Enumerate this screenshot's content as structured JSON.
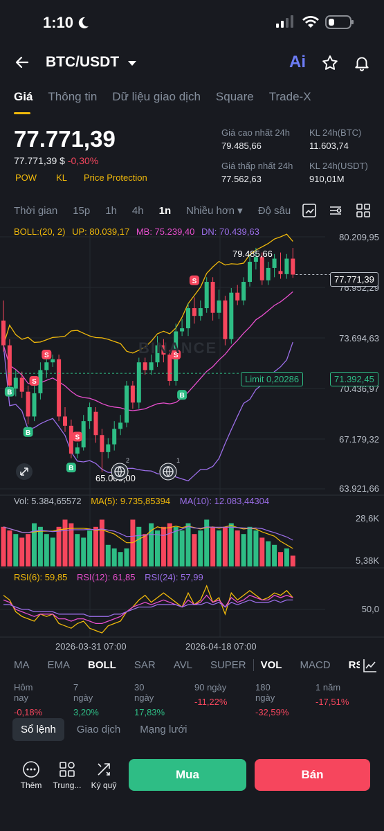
{
  "status_bar": {
    "time": "1:10"
  },
  "header": {
    "pair": "BTC/USDT",
    "ai_label": "Ai"
  },
  "tabs": [
    "Giá",
    "Thông tin",
    "Dữ liệu giao dịch",
    "Square",
    "Trade-X"
  ],
  "price": {
    "last": "77.771,39",
    "usd": "77.771,39 $",
    "change": "-0,30%",
    "tags": [
      "POW",
      "KL",
      "Price Protection"
    ]
  },
  "stats": {
    "high_label": "Giá cao nhất 24h",
    "high_value": "79.485,66",
    "low_label": "Giá thấp nhất 24h",
    "low_value": "77.562,63",
    "vol_btc_label": "KL 24h(BTC)",
    "vol_btc_value": "11.603,74",
    "vol_usdt_label": "KL 24h(USDT)",
    "vol_usdt_value": "910,01M"
  },
  "timebar": {
    "items": [
      "Thời gian",
      "15p",
      "1h",
      "4h",
      "1n",
      "Nhiều hơn ▾",
      "Độ sâu"
    ],
    "active": "1n"
  },
  "chart": {
    "boll": {
      "label": "BOLL:(20, 2)",
      "up": "UP: 80.039,17",
      "mb": "MB: 75.239,40",
      "dn": "DN: 70.439,63"
    },
    "price_axis": [
      "80.209,95",
      "76.952,29",
      "73.694,63",
      "70.436,97",
      "67.179,32",
      "63.921,66"
    ],
    "high_marker": "79.485,66",
    "low_marker": "65.000,00",
    "current_price_box": "77.771,39",
    "limit_label": "Limit 0,20286",
    "limit_price_box": "71.392,45",
    "watermark": "BINANCE",
    "vol": {
      "label": "Vol: 5.384,65572",
      "ma5": "MA(5): 9.735,85394",
      "ma10": "MA(10): 12.083,44304",
      "axis": [
        "28,6K",
        "5,38K"
      ]
    },
    "rsi": {
      "r6": "RSI(6): 59,85",
      "r12": "RSI(12): 61,85",
      "r24": "RSI(24): 57,99",
      "axis": "50,0"
    },
    "time_labels": [
      "2026-03-31 07:00",
      "2026-04-18 07:00"
    ],
    "badge_counts": [
      "2",
      "1"
    ]
  },
  "colors": {
    "up": "#2ebd85",
    "down": "#f6465d",
    "boll_up": "#f0b90b",
    "boll_mb": "#e84fce",
    "boll_dn": "#9b6ee8",
    "accent": "#f0b90b"
  },
  "indicator_tabs": [
    "MA",
    "EMA",
    "BOLL",
    "SAR",
    "AVL",
    "SUPER",
    "VOL",
    "MACD",
    "RSI"
  ],
  "performance": [
    {
      "label": "Hôm nay",
      "value": "-0,18%"
    },
    {
      "label": "7 ngày",
      "value": "3,20%"
    },
    {
      "label": "30 ngày",
      "value": "17,83%"
    },
    {
      "label": "90 ngày",
      "value": "-11,22%"
    },
    {
      "label": "180 ngày",
      "value": "-32,59%"
    },
    {
      "label": "1 năm",
      "value": "-17,51%"
    }
  ],
  "book_tabs": [
    "Sổ lệnh",
    "Giao dịch",
    "Mạng lưới"
  ],
  "bottom": {
    "more": "Thêm",
    "center": "Trung...",
    "margin": "Ký quỹ",
    "buy": "Mua",
    "sell": "Bán"
  },
  "candles": [
    {
      "o": 74.8,
      "c": 73.2,
      "h": 76.1,
      "l": 72.8
    },
    {
      "o": 73.2,
      "c": 70.6,
      "h": 73.6,
      "l": 70.3
    },
    {
      "o": 70.4,
      "c": 71.1,
      "h": 71.6,
      "l": 69.9
    },
    {
      "o": 71.1,
      "c": 70.2,
      "h": 71.5,
      "l": 69.8
    },
    {
      "o": 70.2,
      "c": 68.6,
      "h": 70.6,
      "l": 68.1
    },
    {
      "o": 68.6,
      "c": 70.1,
      "h": 70.6,
      "l": 68.3
    },
    {
      "o": 70.1,
      "c": 71.6,
      "h": 72.1,
      "l": 69.7
    },
    {
      "o": 71.6,
      "c": 72.1,
      "h": 72.6,
      "l": 71.1
    },
    {
      "o": 72.1,
      "c": 72.3,
      "h": 72.6,
      "l": 71.8
    },
    {
      "o": 72.3,
      "c": 68.6,
      "h": 72.6,
      "l": 68.3
    },
    {
      "o": 68.6,
      "c": 68.0,
      "h": 69.2,
      "l": 67.6
    },
    {
      "o": 68.0,
      "c": 66.2,
      "h": 68.4,
      "l": 65.9
    },
    {
      "o": 66.2,
      "c": 66.6,
      "h": 66.9,
      "l": 65.9
    },
    {
      "o": 66.6,
      "c": 68.3,
      "h": 68.7,
      "l": 66.4
    },
    {
      "o": 68.3,
      "c": 69.2,
      "h": 69.5,
      "l": 67.8
    },
    {
      "o": 68.9,
      "c": 67.4,
      "h": 69.2,
      "l": 66.9
    },
    {
      "o": 67.4,
      "c": 66.3,
      "h": 67.8,
      "l": 65.0
    },
    {
      "o": 66.3,
      "c": 66.8,
      "h": 67.2,
      "l": 65.9
    },
    {
      "o": 66.8,
      "c": 67.8,
      "h": 68.3,
      "l": 66.4
    },
    {
      "o": 67.8,
      "c": 68.2,
      "h": 68.7,
      "l": 67.4
    },
    {
      "o": 68.2,
      "c": 70.6,
      "h": 70.9,
      "l": 67.9
    },
    {
      "o": 70.6,
      "c": 69.5,
      "h": 70.9,
      "l": 69.1
    },
    {
      "o": 69.5,
      "c": 72.1,
      "h": 72.4,
      "l": 69.1
    },
    {
      "o": 72.1,
      "c": 71.6,
      "h": 72.4,
      "l": 71.3
    },
    {
      "o": 71.6,
      "c": 72.1,
      "h": 72.6,
      "l": 71.3
    },
    {
      "o": 72.1,
      "c": 73.2,
      "h": 73.8,
      "l": 71.8
    },
    {
      "o": 73.2,
      "c": 72.6,
      "h": 73.6,
      "l": 72.1
    },
    {
      "o": 72.6,
      "c": 70.9,
      "h": 72.9,
      "l": 70.6
    },
    {
      "o": 70.9,
      "c": 74.1,
      "h": 74.6,
      "l": 70.6
    },
    {
      "o": 74.1,
      "c": 74.3,
      "h": 74.9,
      "l": 73.8
    },
    {
      "o": 74.3,
      "c": 75.6,
      "h": 75.9,
      "l": 73.8
    },
    {
      "o": 75.6,
      "c": 75.1,
      "h": 76.3,
      "l": 74.6
    },
    {
      "o": 75.1,
      "c": 75.6,
      "h": 76.1,
      "l": 74.8
    },
    {
      "o": 75.6,
      "c": 77.3,
      "h": 77.6,
      "l": 75.3
    },
    {
      "o": 77.3,
      "c": 75.3,
      "h": 77.6,
      "l": 74.8
    },
    {
      "o": 75.3,
      "c": 76.1,
      "h": 76.8,
      "l": 74.9
    },
    {
      "o": 76.1,
      "c": 73.6,
      "h": 76.4,
      "l": 73.2
    },
    {
      "o": 73.6,
      "c": 76.6,
      "h": 76.9,
      "l": 73.3
    },
    {
      "o": 76.6,
      "c": 76.1,
      "h": 77.1,
      "l": 75.8
    },
    {
      "o": 76.1,
      "c": 77.3,
      "h": 77.6,
      "l": 75.8
    },
    {
      "o": 77.3,
      "c": 78.6,
      "h": 79.0,
      "l": 77.0
    },
    {
      "o": 78.6,
      "c": 78.9,
      "h": 79.5,
      "l": 78.1
    },
    {
      "o": 78.9,
      "c": 77.4,
      "h": 79.2,
      "l": 77.1
    },
    {
      "o": 77.4,
      "c": 78.2,
      "h": 78.6,
      "l": 77.1
    },
    {
      "o": 78.2,
      "c": 78.8,
      "h": 79.1,
      "l": 77.6
    },
    {
      "o": 78.0,
      "c": 77.8,
      "h": 79.2,
      "l": 77.5
    },
    {
      "o": 77.8,
      "c": 78.8,
      "h": 79.1,
      "l": 77.5
    },
    {
      "o": 78.8,
      "c": 77.77,
      "h": 79.49,
      "l": 77.56
    }
  ],
  "volumes": [
    22,
    20,
    18,
    16,
    18,
    24,
    22,
    18,
    16,
    22,
    26,
    24,
    18,
    16,
    20,
    22,
    26,
    12,
    10,
    8,
    10,
    26,
    22,
    18,
    24,
    20,
    22,
    24,
    22,
    20,
    24,
    18,
    20,
    26,
    22,
    20,
    22,
    24,
    20,
    18,
    22,
    20,
    16,
    14,
    12,
    8,
    10,
    6
  ],
  "rsi6": [
    62,
    58,
    48,
    44,
    42,
    40,
    46,
    44,
    46,
    38,
    36,
    34,
    38,
    40,
    34,
    32,
    30,
    36,
    38,
    40,
    48,
    52,
    58,
    62,
    56,
    60,
    64,
    60,
    56,
    52,
    64,
    54,
    58,
    70,
    56,
    60,
    46,
    64,
    58,
    62,
    66,
    62,
    58,
    60,
    64,
    62,
    66,
    60
  ],
  "rsi12": [
    58,
    56,
    50,
    48,
    46,
    44,
    46,
    46,
    46,
    42,
    42,
    40,
    42,
    42,
    40,
    38,
    38,
    40,
    42,
    44,
    48,
    52,
    54,
    56,
    54,
    56,
    58,
    56,
    54,
    52,
    58,
    54,
    56,
    62,
    56,
    58,
    52,
    60,
    56,
    58,
    62,
    60,
    58,
    58,
    62,
    60,
    62,
    60
  ],
  "rsi24": [
    54,
    54,
    52,
    50,
    50,
    48,
    48,
    48,
    48,
    46,
    46,
    46,
    46,
    46,
    44,
    44,
    44,
    44,
    46,
    46,
    48,
    50,
    52,
    52,
    52,
    54,
    54,
    54,
    54,
    52,
    54,
    54,
    54,
    56,
    54,
    56,
    52,
    56,
    54,
    56,
    58,
    56,
    56,
    56,
    58,
    56,
    58,
    58
  ]
}
